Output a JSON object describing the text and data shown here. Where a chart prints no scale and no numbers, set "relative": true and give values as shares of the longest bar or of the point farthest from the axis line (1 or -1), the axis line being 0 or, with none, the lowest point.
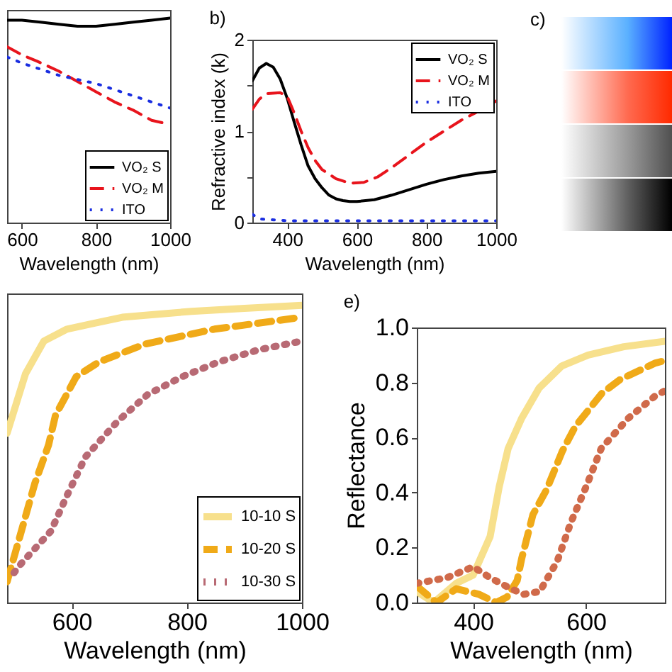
{
  "chart_data": [
    {
      "type": "line",
      "relative": true,
      "xlabel": "Wavelength (nm)",
      "xlim": [
        560,
        1000
      ],
      "xticks": [
        600,
        800,
        1000
      ],
      "legend": "bottom right",
      "grid": false,
      "series": [
        {
          "name": "VO₂ S",
          "color": "#000000",
          "line_style": "solid",
          "x": [
            560,
            600,
            650,
            700,
            750,
            800,
            850,
            900,
            950,
            1000
          ],
          "values": [
            0.99,
            0.99,
            0.98,
            0.97,
            0.96,
            0.96,
            0.97,
            0.98,
            0.99,
            1.0
          ]
        },
        {
          "name": "VO₂ M",
          "color": "#e8141c",
          "line_style": "dashed",
          "x": [
            560,
            600,
            640,
            700,
            750,
            800,
            850,
            900,
            950,
            1000
          ],
          "values": [
            0.86,
            0.82,
            0.79,
            0.74,
            0.69,
            0.64,
            0.59,
            0.55,
            0.5,
            0.48
          ]
        },
        {
          "name": "ITO",
          "color": "#1a2ee0",
          "line_style": "dotted",
          "x": [
            560,
            600,
            650,
            700,
            750,
            800,
            850,
            900,
            950,
            1000
          ],
          "values": [
            0.81,
            0.78,
            0.75,
            0.72,
            0.7,
            0.68,
            0.65,
            0.62,
            0.59,
            0.56
          ]
        }
      ]
    },
    {
      "type": "line",
      "title": "b)",
      "xlabel": "Wavelength (nm)",
      "ylabel": "Refractive index (k)",
      "xlim": [
        300,
        1000
      ],
      "xticks": [
        400,
        600,
        800,
        1000
      ],
      "ylim": [
        0,
        2
      ],
      "yticks": [
        0,
        {
          "value": 0.5,
          "label": null
        },
        1,
        {
          "value": 1.5,
          "label": null
        },
        2
      ],
      "legend": "top right",
      "grid": false,
      "series": [
        {
          "name": "VO₂ S",
          "color": "#000000",
          "line_style": "solid",
          "x": [
            300,
            320,
            340,
            360,
            380,
            400,
            420,
            440,
            460,
            480,
            500,
            520,
            540,
            560,
            580,
            600,
            650,
            700,
            750,
            800,
            850,
            900,
            950,
            1000
          ],
          "values": [
            1.55,
            1.69,
            1.74,
            1.7,
            1.57,
            1.36,
            1.1,
            0.85,
            0.62,
            0.48,
            0.38,
            0.3,
            0.26,
            0.24,
            0.23,
            0.23,
            0.25,
            0.3,
            0.36,
            0.42,
            0.47,
            0.51,
            0.54,
            0.56
          ]
        },
        {
          "name": "VO₂ M",
          "color": "#e8141c",
          "line_style": "dashed",
          "x": [
            300,
            320,
            340,
            380,
            400,
            420,
            440,
            460,
            480,
            500,
            540,
            580,
            620,
            660,
            700,
            750,
            800,
            850,
            900,
            950,
            1000
          ],
          "values": [
            1.24,
            1.35,
            1.41,
            1.42,
            1.38,
            1.2,
            1.0,
            0.82,
            0.68,
            0.58,
            0.48,
            0.43,
            0.44,
            0.5,
            0.6,
            0.74,
            0.88,
            1.0,
            1.12,
            1.22,
            1.33
          ]
        },
        {
          "name": "ITO",
          "color": "#1a2ee0",
          "line_style": "dotted",
          "x": [
            300,
            320,
            400,
            1000
          ],
          "values": [
            0.09,
            0.04,
            0.02,
            0.02
          ]
        }
      ]
    },
    {
      "type": "other",
      "title": "c)"
    },
    {
      "type": "line",
      "relative": true,
      "xlabel": "Wavelength (nm)",
      "xlim": [
        488,
        1000
      ],
      "xticks": [
        600,
        800,
        1000
      ],
      "legend": "bottom right",
      "grid": false,
      "series": [
        {
          "name": "10-10 S",
          "color": "#f7e08c",
          "line_style": "solid",
          "x": [
            488,
            520,
            552,
            592,
            640,
            688,
            750,
            808,
            900,
            1000
          ],
          "values": [
            0.57,
            0.77,
            0.88,
            0.92,
            0.94,
            0.96,
            0.97,
            0.98,
            0.99,
            1.0
          ]
        },
        {
          "name": "10-20 S",
          "color": "#f0aa18",
          "line_style": "dashed",
          "x": [
            488,
            520,
            536,
            560,
            572,
            608,
            648,
            728,
            848,
            1000
          ],
          "values": [
            0.07,
            0.29,
            0.4,
            0.53,
            0.63,
            0.76,
            0.81,
            0.87,
            0.92,
            0.96
          ]
        },
        {
          "name": "10-30 S",
          "color": "#b86a74",
          "line_style": "dotted",
          "x": [
            500,
            512,
            564,
            592,
            624,
            680,
            732,
            792,
            856,
            924,
            1000
          ],
          "values": [
            0.1,
            0.13,
            0.24,
            0.36,
            0.49,
            0.61,
            0.7,
            0.76,
            0.81,
            0.85,
            0.88
          ]
        }
      ]
    },
    {
      "type": "line",
      "title": "e)",
      "xlabel": "Wavelength (nm)",
      "ylabel": "Reflectance",
      "xlim": [
        300,
        740
      ],
      "xticks": [
        400,
        600
      ],
      "ylim": [
        0,
        1
      ],
      "yticks": [
        {
          "value": 0,
          "label": "0.0"
        },
        0.2,
        0.4,
        0.6,
        0.8,
        {
          "value": 1,
          "label": "1.0"
        }
      ],
      "grid": false,
      "series": [
        {
          "color": "#f7e08c",
          "line_style": "solid",
          "x": [
            300,
            330,
            370,
            400,
            430,
            446,
            462,
            486,
            517,
            557,
            604,
            667,
            740
          ],
          "values": [
            0.04,
            0.0,
            0.07,
            0.1,
            0.24,
            0.42,
            0.56,
            0.67,
            0.78,
            0.86,
            0.9,
            0.93,
            0.95
          ]
        },
        {
          "color": "#f0aa18",
          "line_style": "dashed",
          "x": [
            300,
            335,
            370,
            410,
            441,
            460,
            478,
            486,
            506,
            530,
            558,
            581,
            628,
            660,
            722,
            740
          ],
          "values": [
            0.06,
            0.0,
            0.05,
            0.03,
            0.0,
            0.02,
            0.08,
            0.16,
            0.32,
            0.41,
            0.55,
            0.64,
            0.76,
            0.81,
            0.87,
            0.88
          ]
        },
        {
          "color": "#d06a4a",
          "line_style": "dotted",
          "x": [
            300,
            353,
            400,
            430,
            467,
            490,
            518,
            549,
            573,
            600,
            627,
            675,
            722,
            740
          ],
          "values": [
            0.07,
            0.09,
            0.13,
            0.09,
            0.05,
            0.03,
            0.04,
            0.15,
            0.29,
            0.42,
            0.56,
            0.67,
            0.75,
            0.77
          ]
        }
      ]
    }
  ]
}
